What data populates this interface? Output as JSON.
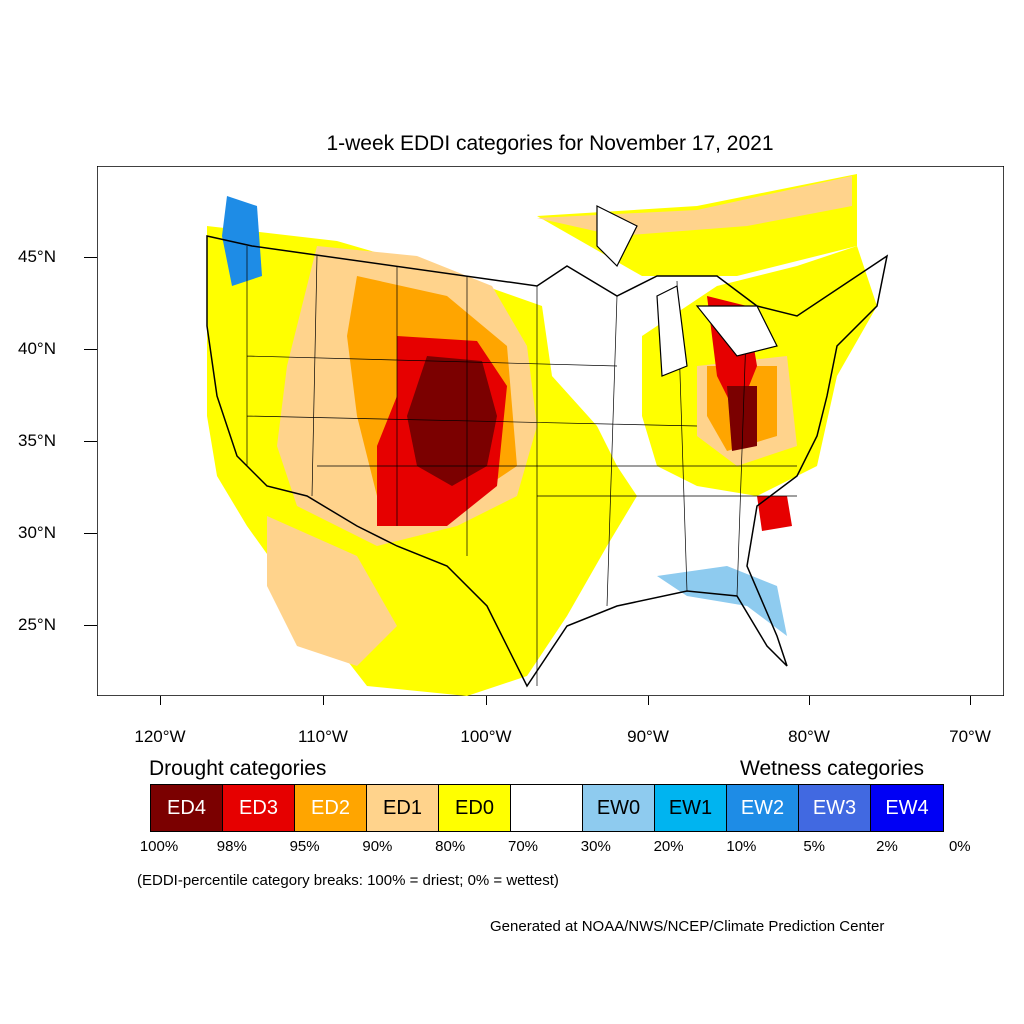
{
  "title": "1-week EDDI categories for November 17, 2021",
  "lat_labels": [
    "45°N",
    "40°N",
    "35°N",
    "30°N",
    "25°N"
  ],
  "lon_labels": [
    "120°W",
    "110°W",
    "100°W",
    "90°W",
    "80°W",
    "70°W"
  ],
  "drought_heading": "Drought categories",
  "wetness_heading": "Wetness categories",
  "legend": [
    {
      "label": "ED4",
      "color": "#7b0000",
      "text_color": "#ffffff"
    },
    {
      "label": "ED3",
      "color": "#e60000",
      "text_color": "#ffffff"
    },
    {
      "label": "ED2",
      "color": "#ffa500",
      "text_color": "#ffffff"
    },
    {
      "label": "ED1",
      "color": "#ffd38c",
      "text_color": "#000000"
    },
    {
      "label": "ED0",
      "color": "#ffff00",
      "text_color": "#000000"
    },
    {
      "label": "",
      "color": "#ffffff",
      "text_color": "#000000"
    },
    {
      "label": "EW0",
      "color": "#8ecbef",
      "text_color": "#000000"
    },
    {
      "label": "EW1",
      "color": "#00b4f0",
      "text_color": "#000000"
    },
    {
      "label": "EW2",
      "color": "#1e8ce6",
      "text_color": "#ffffff"
    },
    {
      "label": "EW3",
      "color": "#4169e1",
      "text_color": "#ffffff"
    },
    {
      "label": "EW4",
      "color": "#0000f5",
      "text_color": "#ffffff"
    }
  ],
  "percent_breaks": [
    "100%",
    "98%",
    "95%",
    "90%",
    "80%",
    "70%",
    "30%",
    "20%",
    "10%",
    "5%",
    "2%",
    "0%"
  ],
  "note": "(EDDI-percentile category breaks: 100% = driest; 0% = wettest)",
  "credit": "Generated at NOAA/NWS/NCEP/Climate Prediction Center"
}
